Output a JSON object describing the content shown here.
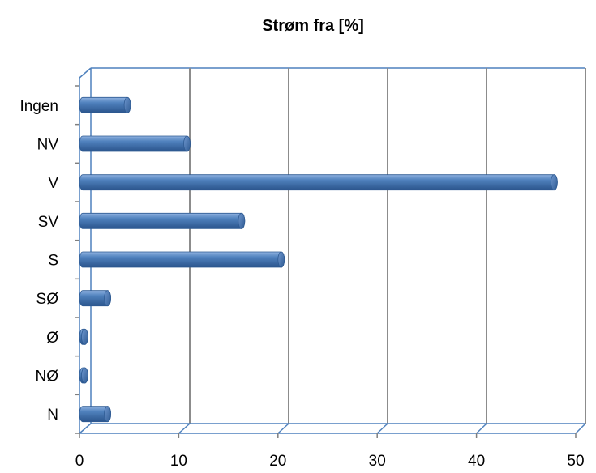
{
  "chart_data": {
    "type": "bar",
    "orientation": "horizontal",
    "title": "Strøm fra [%]",
    "categories": [
      "N",
      "NØ",
      "Ø",
      "SØ",
      "S",
      "SV",
      "V",
      "NV",
      "Ingen"
    ],
    "values": [
      2.5,
      0.2,
      0.2,
      2.5,
      20,
      16,
      47.5,
      10.5,
      4.5
    ],
    "xlim": [
      0,
      50
    ],
    "xticks": [
      "0",
      "10",
      "20",
      "30",
      "40",
      "50"
    ],
    "grid": true,
    "bar_color": "#4F81BD",
    "legend": "none"
  }
}
